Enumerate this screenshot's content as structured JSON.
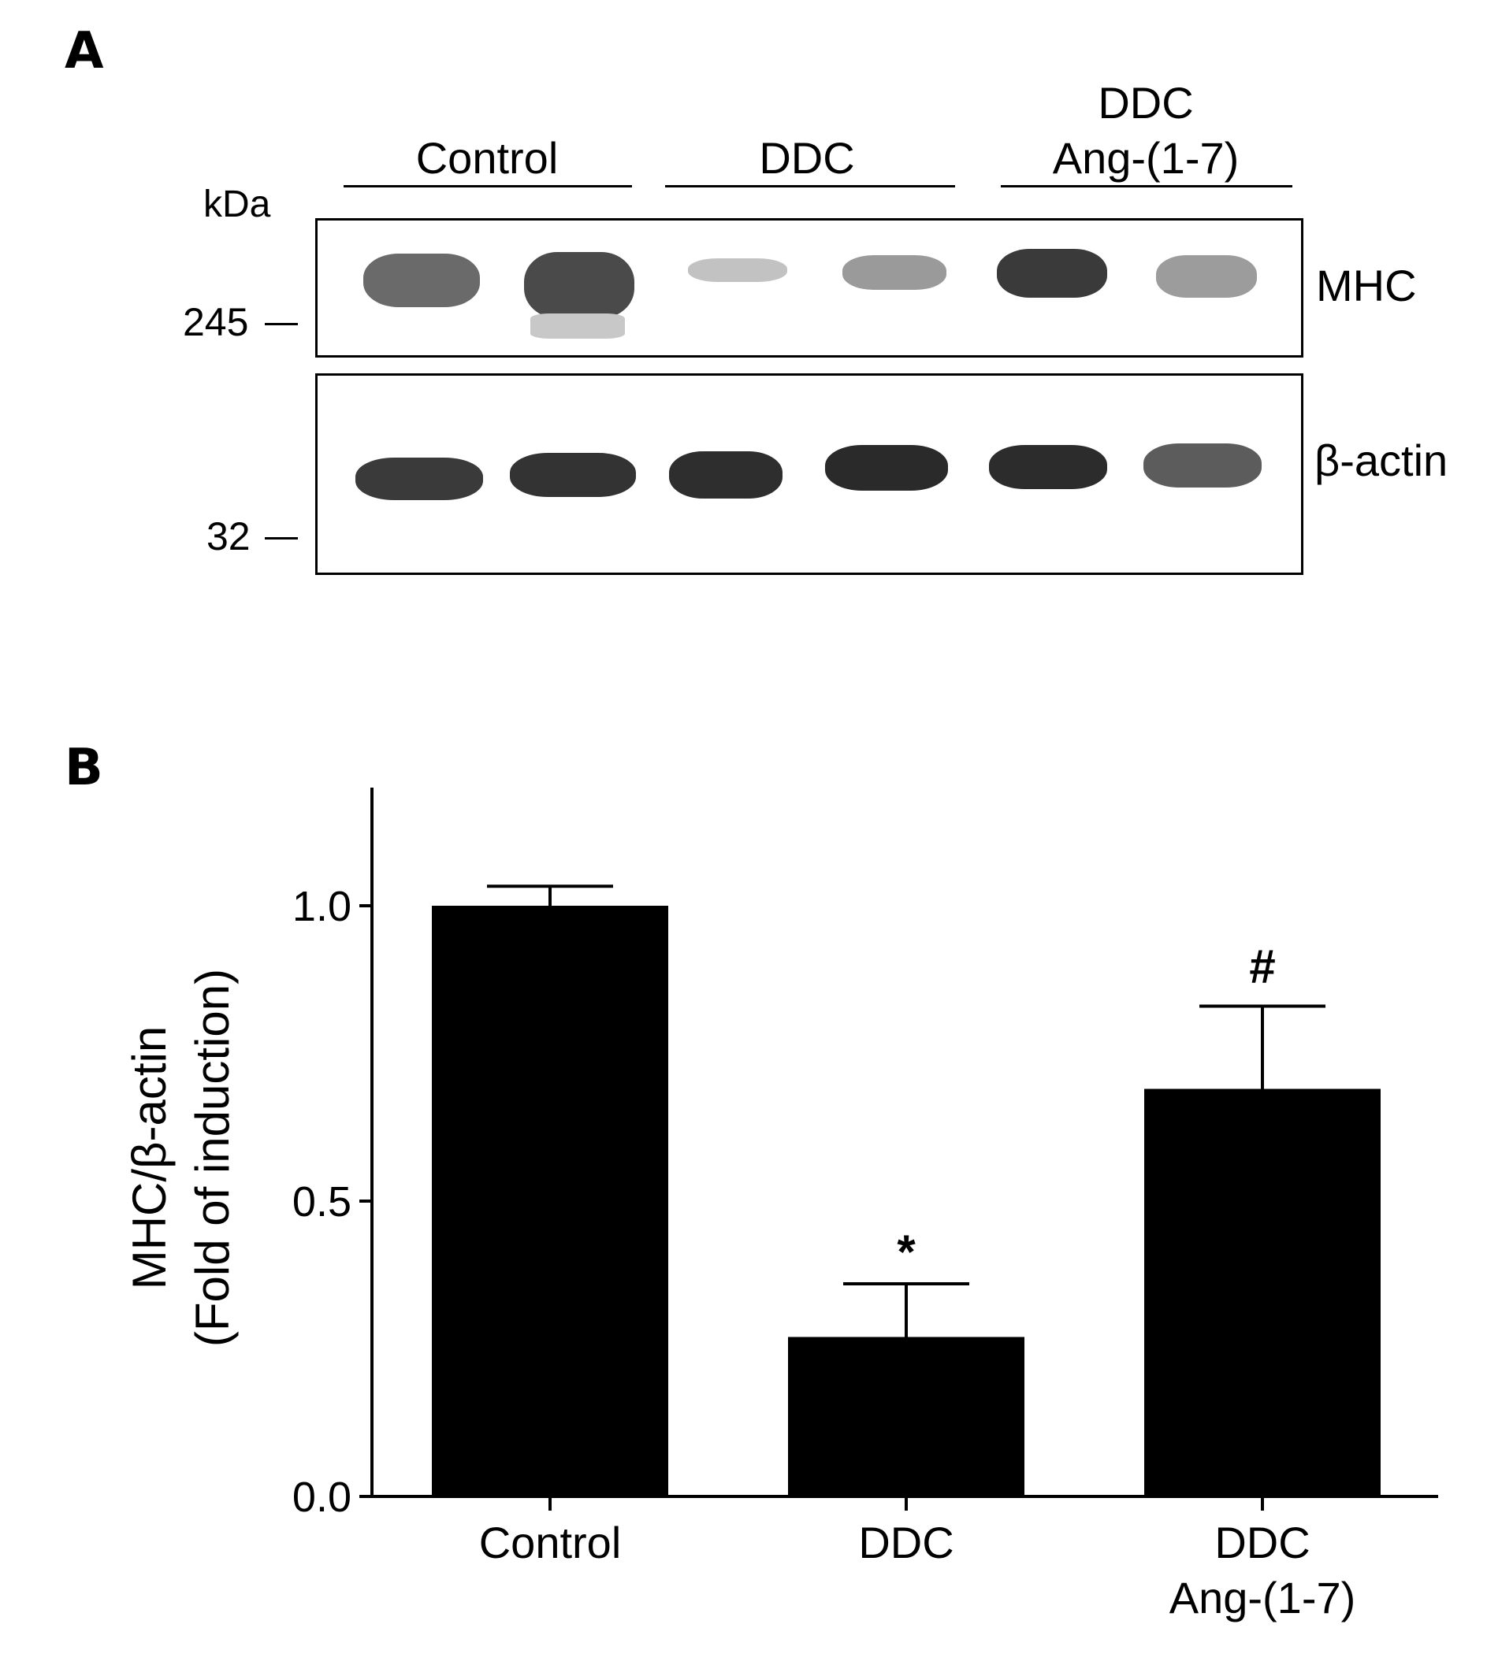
{
  "panel_a": {
    "letter": "A",
    "groups": [
      "Control",
      "DDC",
      "DDC\nAng-(1-7)"
    ],
    "group_line1": [
      "",
      "",
      "DDC"
    ],
    "group_line2": [
      "Control",
      "DDC",
      "Ang-(1-7)"
    ],
    "kda_label": "kDa",
    "marker_245": "245",
    "marker_32": "32",
    "blot_labels": {
      "top": "MHC",
      "bottom": "β-actin"
    },
    "band_colors": {
      "dark": "#262626",
      "medium": "#505050",
      "light": "#9a9a9a"
    }
  },
  "panel_b": {
    "letter": "B"
  },
  "chart_data": {
    "type": "bar",
    "categories": [
      "Control",
      "DDC",
      "DDC\nAng-(1-7)"
    ],
    "values": [
      1.0,
      0.27,
      0.69
    ],
    "error_upper": [
      0.033,
      0.09,
      0.14
    ],
    "significance": [
      "",
      "*",
      "#"
    ],
    "ylabel_line1": "MHC/β-actin",
    "ylabel_line2": "(Fold of induction)",
    "ylim": [
      0,
      1.2
    ],
    "yticks": [
      0.0,
      0.5,
      1.0
    ],
    "ytick_labels": [
      "0.0",
      "0.5",
      "1.0"
    ],
    "bar_color": "#000000",
    "grid": false,
    "legend": "none"
  }
}
